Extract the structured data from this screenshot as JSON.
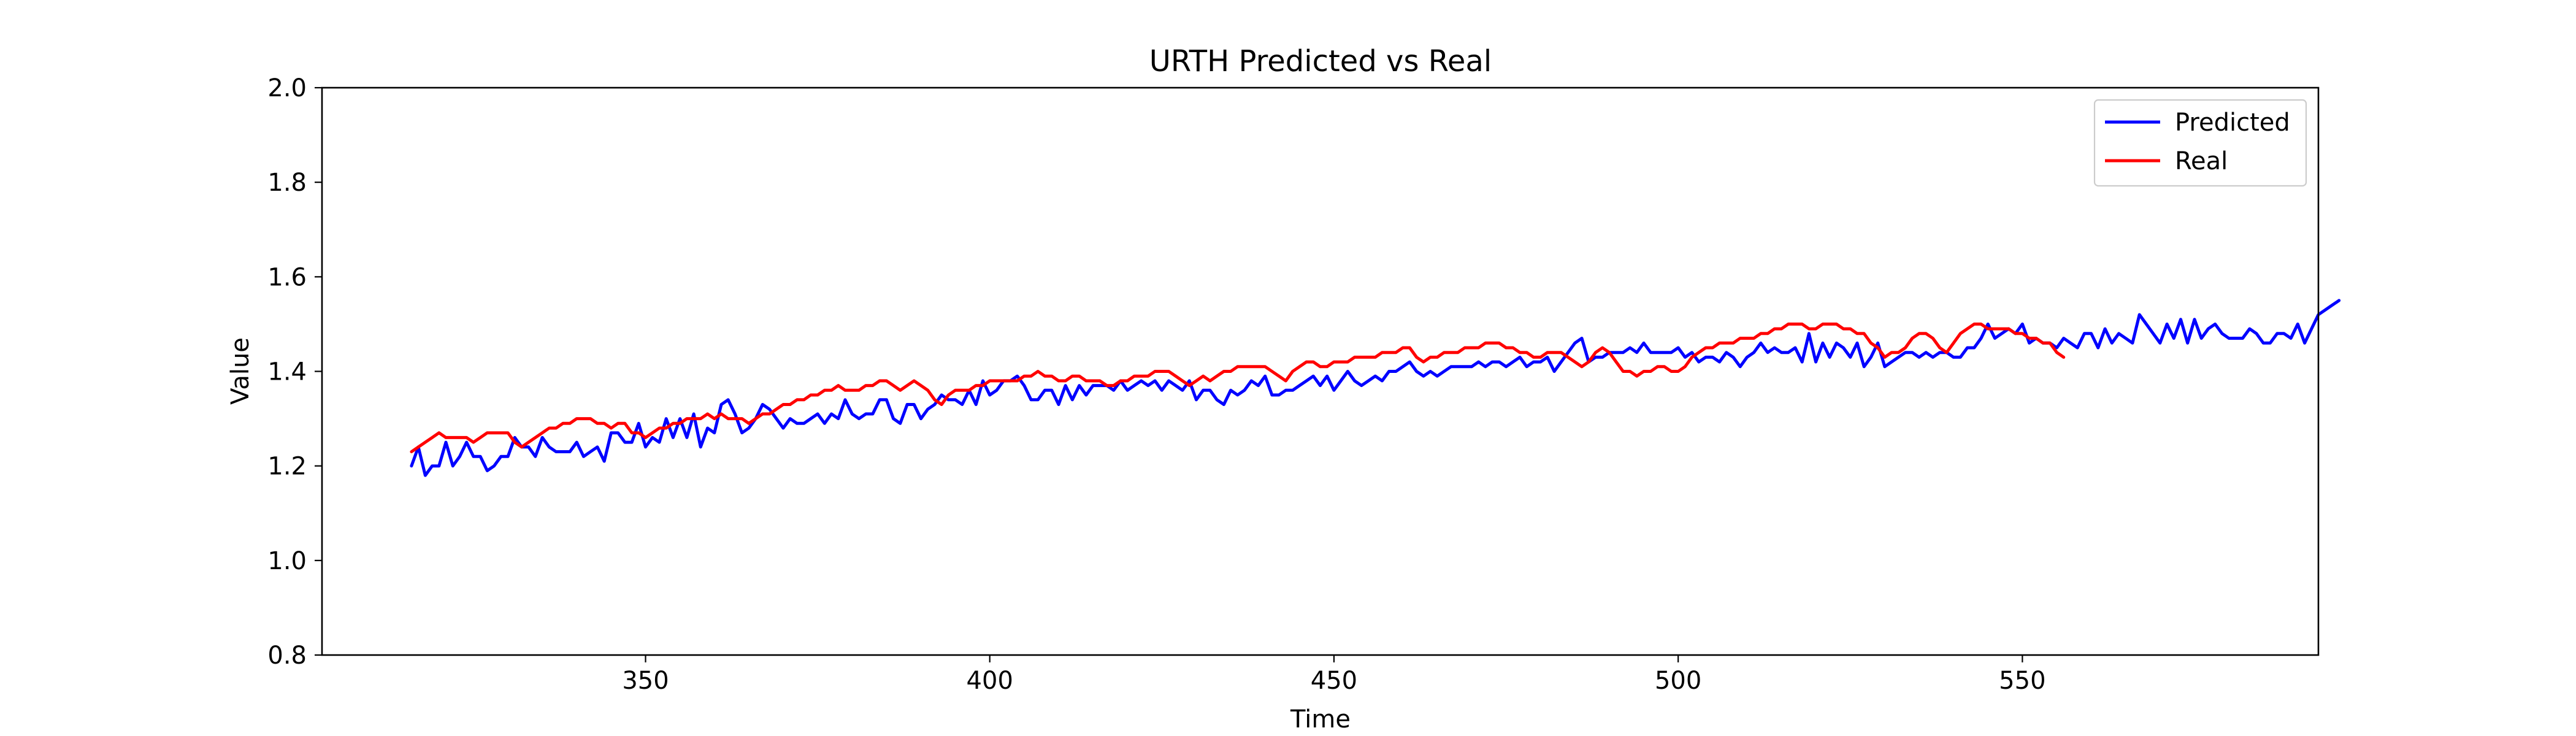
{
  "chart_data": {
    "type": "line",
    "title": "URTH Predicted vs Real",
    "xlabel": "Time",
    "ylabel": "Value",
    "xlim": [
      303,
      593
    ],
    "ylim": [
      0.8,
      2.0
    ],
    "xticks": [
      350,
      400,
      450,
      500,
      550
    ],
    "yticks": [
      0.8,
      1.0,
      1.2,
      1.4,
      1.6,
      1.8,
      2.0
    ],
    "grid": false,
    "legend_position": "top-right",
    "series": [
      {
        "name": "Predicted",
        "color": "#0000ff",
        "x_start": 316,
        "values": [
          1.2,
          1.24,
          1.18,
          1.2,
          1.2,
          1.25,
          1.2,
          1.22,
          1.25,
          1.22,
          1.22,
          1.19,
          1.2,
          1.22,
          1.22,
          1.26,
          1.24,
          1.24,
          1.22,
          1.26,
          1.24,
          1.23,
          1.23,
          1.23,
          1.25,
          1.22,
          1.23,
          1.24,
          1.21,
          1.27,
          1.27,
          1.25,
          1.25,
          1.29,
          1.24,
          1.26,
          1.25,
          1.3,
          1.26,
          1.3,
          1.26,
          1.31,
          1.24,
          1.28,
          1.27,
          1.33,
          1.34,
          1.31,
          1.27,
          1.28,
          1.3,
          1.33,
          1.32,
          1.3,
          1.28,
          1.3,
          1.29,
          1.29,
          1.3,
          1.31,
          1.29,
          1.31,
          1.3,
          1.34,
          1.31,
          1.3,
          1.31,
          1.31,
          1.34,
          1.34,
          1.3,
          1.29,
          1.33,
          1.33,
          1.3,
          1.32,
          1.33,
          1.35,
          1.34,
          1.34,
          1.33,
          1.36,
          1.33,
          1.38,
          1.35,
          1.36,
          1.38,
          1.38,
          1.39,
          1.37,
          1.34,
          1.34,
          1.36,
          1.36,
          1.33,
          1.37,
          1.34,
          1.37,
          1.35,
          1.37,
          1.37,
          1.37,
          1.36,
          1.38,
          1.36,
          1.37,
          1.38,
          1.37,
          1.38,
          1.36,
          1.38,
          1.37,
          1.36,
          1.38,
          1.34,
          1.36,
          1.36,
          1.34,
          1.33,
          1.36,
          1.35,
          1.36,
          1.38,
          1.37,
          1.39,
          1.35,
          1.35,
          1.36,
          1.36,
          1.37,
          1.38,
          1.39,
          1.37,
          1.39,
          1.36,
          1.38,
          1.4,
          1.38,
          1.37,
          1.38,
          1.39,
          1.38,
          1.4,
          1.4,
          1.41,
          1.42,
          1.4,
          1.39,
          1.4,
          1.39,
          1.4,
          1.41,
          1.41,
          1.41,
          1.41,
          1.42,
          1.41,
          1.42,
          1.42,
          1.41,
          1.42,
          1.43,
          1.41,
          1.42,
          1.42,
          1.43,
          1.4,
          1.42,
          1.44,
          1.46,
          1.47,
          1.42,
          1.43,
          1.43,
          1.44,
          1.44,
          1.44,
          1.45,
          1.44,
          1.46,
          1.44,
          1.44,
          1.44,
          1.44,
          1.45,
          1.43,
          1.44,
          1.42,
          1.43,
          1.43,
          1.42,
          1.44,
          1.43,
          1.41,
          1.43,
          1.44,
          1.46,
          1.44,
          1.45,
          1.44,
          1.44,
          1.45,
          1.42,
          1.48,
          1.42,
          1.46,
          1.43,
          1.46,
          1.45,
          1.43,
          1.46,
          1.41,
          1.43,
          1.46,
          1.41,
          1.42,
          1.43,
          1.44,
          1.44,
          1.43,
          1.44,
          1.43,
          1.44,
          1.44,
          1.43,
          1.43,
          1.45,
          1.45,
          1.47,
          1.5,
          1.47,
          1.48,
          1.49,
          1.48,
          1.5,
          1.46,
          1.47,
          1.46,
          1.46,
          1.45,
          1.47,
          1.46,
          1.45,
          1.48,
          1.48,
          1.45,
          1.49,
          1.46,
          1.48,
          1.47,
          1.46,
          1.52,
          1.5,
          1.48,
          1.46,
          1.5,
          1.47,
          1.51,
          1.46,
          1.51,
          1.47,
          1.49,
          1.5,
          1.48,
          1.47,
          1.47,
          1.47,
          1.49,
          1.48,
          1.46,
          1.46,
          1.48,
          1.48,
          1.47,
          1.5,
          1.46,
          1.49,
          1.52,
          1.53,
          1.54,
          1.55
        ]
      },
      {
        "name": "Real",
        "color": "#ff0000",
        "x_start": 316,
        "values": [
          1.23,
          1.24,
          1.25,
          1.26,
          1.27,
          1.26,
          1.26,
          1.26,
          1.26,
          1.25,
          1.26,
          1.27,
          1.27,
          1.27,
          1.27,
          1.25,
          1.24,
          1.25,
          1.26,
          1.27,
          1.28,
          1.28,
          1.29,
          1.29,
          1.3,
          1.3,
          1.3,
          1.29,
          1.29,
          1.28,
          1.29,
          1.29,
          1.27,
          1.27,
          1.26,
          1.27,
          1.28,
          1.28,
          1.29,
          1.29,
          1.3,
          1.3,
          1.3,
          1.31,
          1.3,
          1.31,
          1.3,
          1.3,
          1.3,
          1.29,
          1.3,
          1.31,
          1.31,
          1.32,
          1.33,
          1.33,
          1.34,
          1.34,
          1.35,
          1.35,
          1.36,
          1.36,
          1.37,
          1.36,
          1.36,
          1.36,
          1.37,
          1.37,
          1.38,
          1.38,
          1.37,
          1.36,
          1.37,
          1.38,
          1.37,
          1.36,
          1.34,
          1.33,
          1.35,
          1.36,
          1.36,
          1.36,
          1.37,
          1.37,
          1.38,
          1.38,
          1.38,
          1.38,
          1.38,
          1.39,
          1.39,
          1.4,
          1.39,
          1.39,
          1.38,
          1.38,
          1.39,
          1.39,
          1.38,
          1.38,
          1.38,
          1.37,
          1.37,
          1.38,
          1.38,
          1.39,
          1.39,
          1.39,
          1.4,
          1.4,
          1.4,
          1.39,
          1.38,
          1.37,
          1.38,
          1.39,
          1.38,
          1.39,
          1.4,
          1.4,
          1.41,
          1.41,
          1.41,
          1.41,
          1.41,
          1.4,
          1.39,
          1.38,
          1.4,
          1.41,
          1.42,
          1.42,
          1.41,
          1.41,
          1.42,
          1.42,
          1.42,
          1.43,
          1.43,
          1.43,
          1.43,
          1.44,
          1.44,
          1.44,
          1.45,
          1.45,
          1.43,
          1.42,
          1.43,
          1.43,
          1.44,
          1.44,
          1.44,
          1.45,
          1.45,
          1.45,
          1.46,
          1.46,
          1.46,
          1.45,
          1.45,
          1.44,
          1.44,
          1.43,
          1.43,
          1.44,
          1.44,
          1.44,
          1.43,
          1.42,
          1.41,
          1.42,
          1.44,
          1.45,
          1.44,
          1.42,
          1.4,
          1.4,
          1.39,
          1.4,
          1.4,
          1.41,
          1.41,
          1.4,
          1.4,
          1.41,
          1.43,
          1.44,
          1.45,
          1.45,
          1.46,
          1.46,
          1.46,
          1.47,
          1.47,
          1.47,
          1.48,
          1.48,
          1.49,
          1.49,
          1.5,
          1.5,
          1.5,
          1.49,
          1.49,
          1.5,
          1.5,
          1.5,
          1.49,
          1.49,
          1.48,
          1.48,
          1.46,
          1.45,
          1.43,
          1.44,
          1.44,
          1.45,
          1.47,
          1.48,
          1.48,
          1.47,
          1.45,
          1.44,
          1.46,
          1.48,
          1.49,
          1.5,
          1.5,
          1.49,
          1.49,
          1.49,
          1.49,
          1.48,
          1.48,
          1.47,
          1.47,
          1.46,
          1.46,
          1.44,
          1.43
        ]
      }
    ]
  }
}
